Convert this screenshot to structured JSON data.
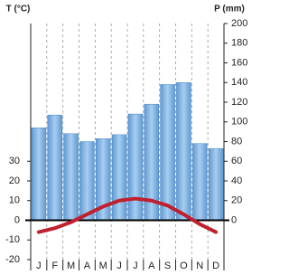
{
  "chart_data": {
    "type": "combo",
    "y_label": "T (°C)",
    "y2_label": "P (mm)",
    "categories": [
      "J",
      "F",
      "M",
      "A",
      "M",
      "J",
      "J",
      "A",
      "S",
      "O",
      "N",
      "D"
    ],
    "series": [
      {
        "name": "P",
        "type": "bar",
        "axis": "y2",
        "color": "#7fb3e0",
        "values": [
          94,
          107,
          88,
          80,
          83,
          87,
          108,
          118,
          138,
          140,
          78,
          73
        ]
      },
      {
        "name": "T",
        "type": "line",
        "color": "#c0202e",
        "values": [
          -6,
          -4,
          -1,
          3,
          7,
          10,
          11,
          10,
          7.5,
          3,
          -2,
          -6
        ]
      }
    ],
    "ylim": [
      -20,
      100
    ],
    "yticks": [
      -20,
      -10,
      0,
      10,
      20,
      30
    ],
    "y2lim": [
      -40,
      200
    ],
    "y2ticks": [
      0,
      20,
      40,
      60,
      80,
      100,
      120,
      140,
      160,
      180,
      200
    ],
    "grid": true
  }
}
